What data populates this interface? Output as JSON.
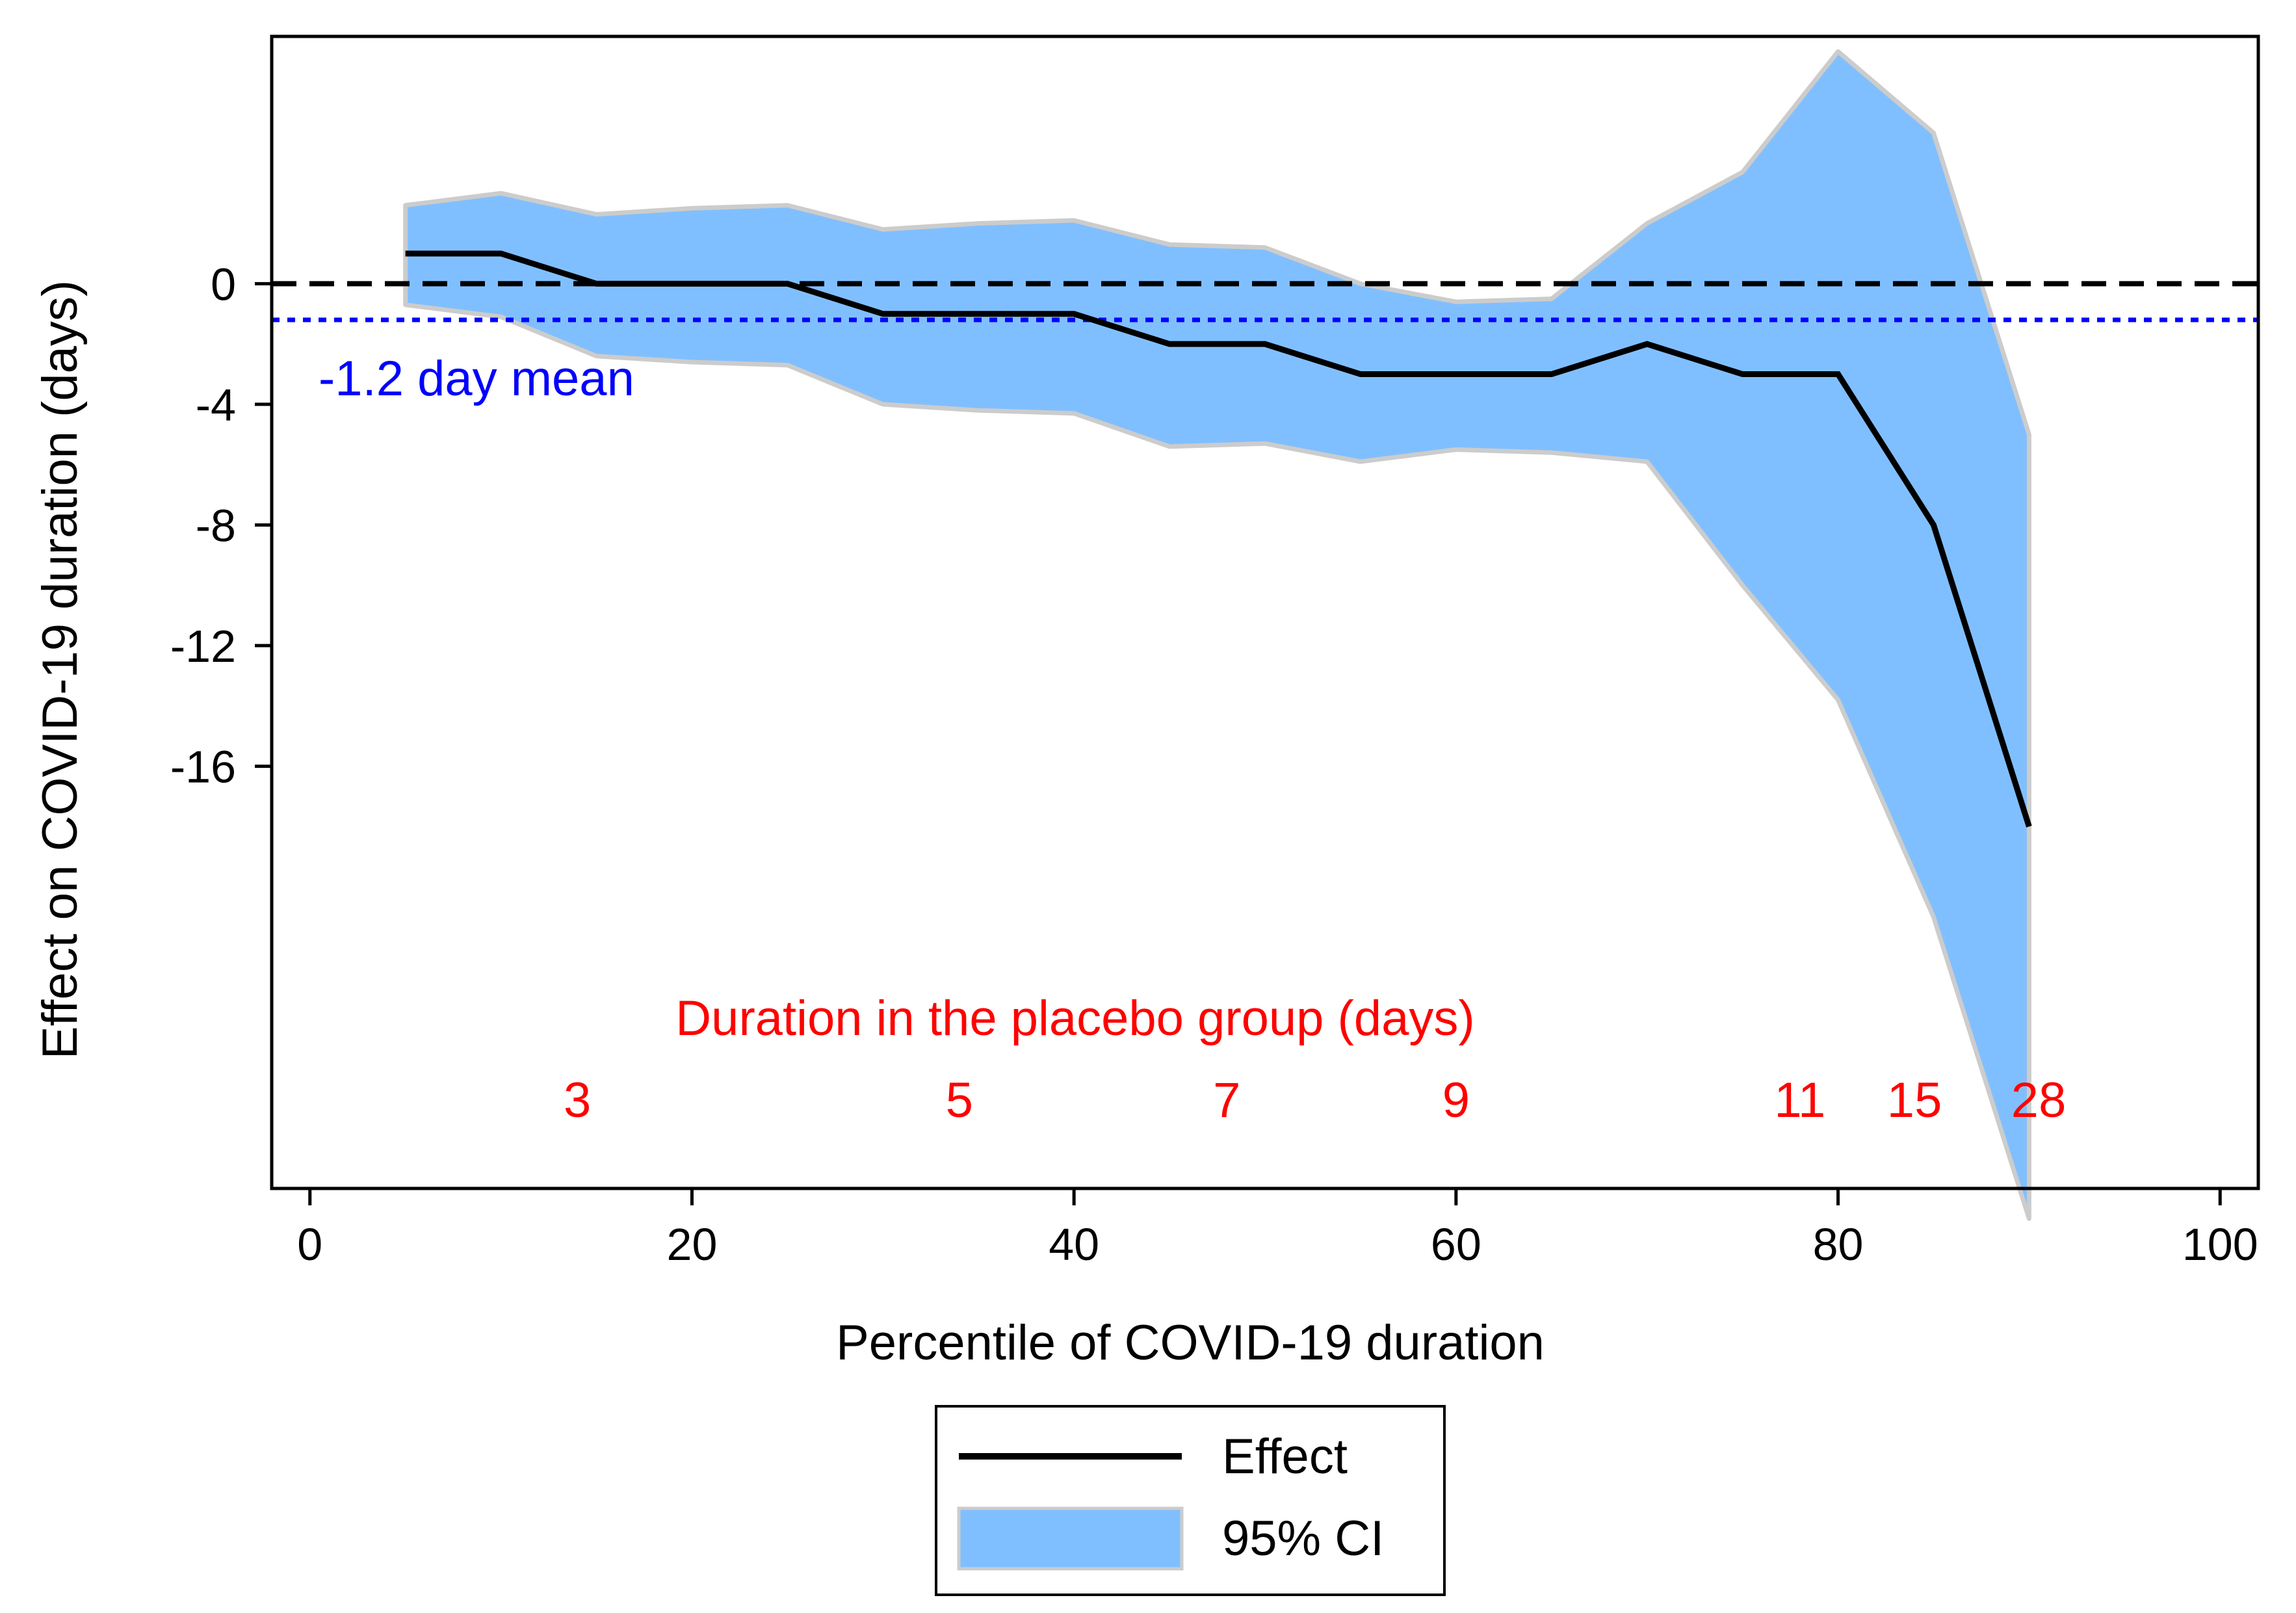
{
  "chart_data": {
    "type": "area",
    "title": "",
    "xlabel": "Percentile of COVID-19 duration",
    "ylabel": "Effect on COVID-19 duration (days)",
    "xlim": [
      -2,
      102
    ],
    "ylim": [
      -30,
      8.2
    ],
    "x_ticks": [
      0,
      20,
      40,
      60,
      80,
      100
    ],
    "x_tick_labels": [
      "0",
      "20",
      "40",
      "60",
      "80",
      "100"
    ],
    "y_ticks": [
      0,
      -4,
      -8,
      -12,
      -16
    ],
    "y_tick_labels": [
      "0",
      "-4",
      "-8",
      "-12",
      "-16"
    ],
    "grid": false,
    "series": [
      {
        "name": "Effect",
        "kind": "line",
        "color": "#000000",
        "x": [
          5,
          10,
          15,
          20,
          25,
          30,
          35,
          40,
          45,
          50,
          55,
          60,
          65,
          70,
          75,
          80,
          85,
          90
        ],
        "values": [
          1,
          1,
          0,
          0,
          0,
          -1,
          -1,
          -1,
          -2,
          -2,
          -3,
          -3,
          -3,
          -2,
          -3,
          -3,
          -8,
          -18
        ]
      },
      {
        "name": "95% CI",
        "kind": "band",
        "color": "#80bfff",
        "edge_color": "#cccccc",
        "x": [
          5,
          10,
          15,
          20,
          25,
          30,
          35,
          40,
          45,
          50,
          55,
          60,
          65,
          70,
          75,
          80,
          85,
          90
        ],
        "upper": [
          2.6,
          3.0,
          2.3,
          2.5,
          2.6,
          1.8,
          2.0,
          2.1,
          1.3,
          1.2,
          0,
          -0.6,
          -0.5,
          2.0,
          3.7,
          7.7,
          5.0,
          -5.0
        ],
        "lower": [
          -0.7,
          -1.1,
          -2.4,
          -2.6,
          -2.7,
          -4.0,
          -4.2,
          -4.3,
          -5.4,
          -5.3,
          -5.9,
          -5.5,
          -5.6,
          -5.9,
          -10.0,
          -13.8,
          -21.0,
          -31.0
        ]
      }
    ],
    "reference_lines": [
      {
        "name": "zero",
        "y": 0,
        "style": "dashed",
        "color": "#000000"
      },
      {
        "name": "mean",
        "y": -1.2,
        "style": "dotted",
        "color": "#0000ff"
      }
    ],
    "annotations": {
      "mean_label": {
        "text": "-1.2 day mean",
        "color": "#0000ff"
      },
      "placebo_title": {
        "text": "Duration in the placebo group (days)",
        "color": "#ff0000"
      },
      "placebo_labels": [
        {
          "text": "3",
          "x": 14
        },
        {
          "text": "5",
          "x": 34
        },
        {
          "text": "7",
          "x": 48
        },
        {
          "text": "9",
          "x": 60
        },
        {
          "text": "11",
          "x": 78
        },
        {
          "text": "15",
          "x": 84
        },
        {
          "text": "28",
          "x": 90.5
        }
      ]
    },
    "legend": {
      "position": "bottom-center",
      "entries": [
        {
          "label": "Effect",
          "kind": "line",
          "color": "#000000"
        },
        {
          "label": "95% CI",
          "kind": "patch",
          "color": "#80bfff"
        }
      ]
    }
  }
}
